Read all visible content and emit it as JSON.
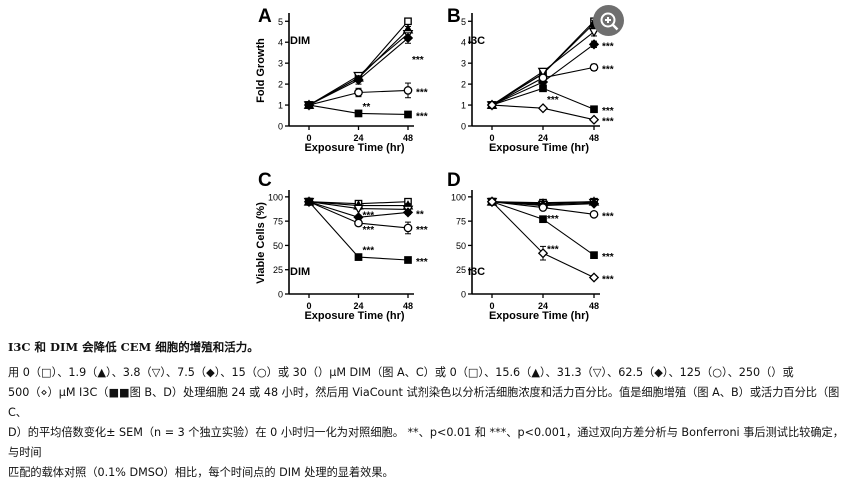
{
  "chart_data": [
    {
      "type": "line",
      "panel": "A",
      "label": "DIM",
      "xlabel": "Exposure Time (hr)",
      "ylabel": "Fold Growth",
      "x": [
        0,
        24,
        48
      ],
      "xticks": [
        "0",
        "24",
        "48"
      ],
      "yticks": [
        "0",
        "1",
        "2",
        "3",
        "4",
        "5"
      ],
      "ylim": [
        0,
        5.3
      ],
      "series": [
        {
          "name": "0 µM",
          "marker": "square-open",
          "values": [
            1,
            2.3,
            5.0
          ],
          "err": [
            0,
            0.15,
            0.12
          ],
          "sig": ""
        },
        {
          "name": "1.9 µM",
          "marker": "triangle-up-filled",
          "values": [
            1,
            2.3,
            4.6
          ],
          "err": [
            0,
            0.15,
            0.15
          ],
          "sig": ""
        },
        {
          "name": "3.8 µM",
          "marker": "triangle-down-open",
          "values": [
            1,
            2.4,
            4.4
          ],
          "err": [
            0,
            0.15,
            0.2
          ],
          "sig": ""
        },
        {
          "name": "7.5 µM",
          "marker": "diamond-filled",
          "values": [
            1,
            2.2,
            4.2
          ],
          "err": [
            0,
            0.2,
            0.25
          ],
          "sig": ""
        },
        {
          "name": "15 µM",
          "marker": "circle-open",
          "values": [
            1,
            1.6,
            1.7
          ],
          "err": [
            0,
            0.2,
            0.35
          ],
          "sig": "***"
        },
        {
          "name": "30 µM",
          "marker": "square-filled",
          "values": [
            1,
            0.6,
            0.55
          ],
          "err": [
            0,
            0.05,
            0.05
          ],
          "sig": "***"
        }
      ],
      "annotations": [
        {
          "text": "***",
          "x": 48,
          "y": 3.2
        },
        {
          "text": "**",
          "x": 24,
          "y": 0.95
        }
      ]
    },
    {
      "type": "line",
      "panel": "B",
      "label": "I3C",
      "xlabel": "Exposure Time (hr)",
      "ylabel": "",
      "x": [
        0,
        24,
        48
      ],
      "xticks": [
        "0",
        "24",
        "48"
      ],
      "yticks": [
        "0",
        "1",
        "2",
        "3",
        "4",
        "5"
      ],
      "ylim": [
        0,
        5.3
      ],
      "series": [
        {
          "name": "0 µM",
          "marker": "square-open",
          "values": [
            1,
            2.5,
            5.0
          ],
          "err": [
            0,
            0.15,
            0.1
          ],
          "sig": ""
        },
        {
          "name": "15.6 µM",
          "marker": "triangle-up-filled",
          "values": [
            1,
            2.5,
            4.9
          ],
          "err": [
            0,
            0.15,
            0.15
          ],
          "sig": ""
        },
        {
          "name": "31.3 µM",
          "marker": "triangle-down-open",
          "values": [
            1,
            2.6,
            4.5
          ],
          "err": [
            0,
            0.15,
            0.2
          ],
          "sig": ""
        },
        {
          "name": "62.5 µM",
          "marker": "diamond-filled",
          "values": [
            1,
            2.1,
            3.9
          ],
          "err": [
            0,
            0.15,
            0.15
          ],
          "sig": "***"
        },
        {
          "name": "125 µM",
          "marker": "circle-open",
          "values": [
            1,
            2.3,
            2.8
          ],
          "err": [
            0,
            0.15,
            0.15
          ],
          "sig": "***"
        },
        {
          "name": "250 µM",
          "marker": "square-filled",
          "values": [
            1,
            1.8,
            0.8
          ],
          "err": [
            0,
            0.15,
            0.05
          ],
          "sig": "***"
        },
        {
          "name": "500 µM",
          "marker": "diamond-open",
          "values": [
            1,
            0.85,
            0.3
          ],
          "err": [
            0,
            0.05,
            0.05
          ],
          "sig": "***"
        }
      ],
      "annotations": [
        {
          "text": "***",
          "x": 24,
          "y": 1.3
        }
      ]
    },
    {
      "type": "line",
      "panel": "C",
      "label": "DIM",
      "xlabel": "Exposure Time (hr)",
      "ylabel": "Viable Cells (%)",
      "x": [
        0,
        24,
        48
      ],
      "xticks": [
        "0",
        "24",
        "48"
      ],
      "yticks": [
        "0",
        "25",
        "50",
        "75",
        "100"
      ],
      "ylim": [
        0,
        105
      ],
      "series": [
        {
          "name": "0 µM",
          "marker": "square-open",
          "values": [
            95,
            93,
            95
          ],
          "err": [
            0,
            1,
            1
          ],
          "sig": ""
        },
        {
          "name": "1.9 µM",
          "marker": "triangle-up-filled",
          "values": [
            95,
            91,
            91
          ],
          "err": [
            0,
            1,
            2
          ],
          "sig": ""
        },
        {
          "name": "3.8 µM",
          "marker": "triangle-down-open",
          "values": [
            95,
            88,
            87
          ],
          "err": [
            0,
            1,
            2
          ],
          "sig": ""
        },
        {
          "name": "7.5 µM",
          "marker": "diamond-filled",
          "values": [
            95,
            79,
            84
          ],
          "err": [
            0,
            2,
            2
          ],
          "sig": "**"
        },
        {
          "name": "15 µM",
          "marker": "circle-open",
          "values": [
            95,
            73,
            68
          ],
          "err": [
            0,
            3,
            6
          ],
          "sig": "***"
        },
        {
          "name": "30 µM",
          "marker": "square-filled",
          "values": [
            95,
            38,
            35
          ],
          "err": [
            0,
            2,
            2
          ],
          "sig": "***"
        }
      ],
      "annotations": [
        {
          "text": "***",
          "x": 24,
          "y": 82
        },
        {
          "text": "***",
          "x": 24,
          "y": 67
        },
        {
          "text": "***",
          "x": 24,
          "y": 46
        }
      ]
    },
    {
      "type": "line",
      "panel": "D",
      "label": "I3C",
      "xlabel": "Exposure Time (hr)",
      "ylabel": "",
      "x": [
        0,
        24,
        48
      ],
      "xticks": [
        "0",
        "24",
        "48"
      ],
      "yticks": [
        "0",
        "25",
        "50",
        "75",
        "100"
      ],
      "ylim": [
        0,
        105
      ],
      "series": [
        {
          "name": "0 µM",
          "marker": "square-open",
          "values": [
            95,
            94,
            95
          ],
          "err": [
            0,
            1,
            1
          ],
          "sig": ""
        },
        {
          "name": "15.6 µM",
          "marker": "triangle-up-filled",
          "values": [
            95,
            93,
            95
          ],
          "err": [
            0,
            1,
            1
          ],
          "sig": ""
        },
        {
          "name": "31.3 µM",
          "marker": "triangle-down-open",
          "values": [
            95,
            92,
            94
          ],
          "err": [
            0,
            1,
            1
          ],
          "sig": ""
        },
        {
          "name": "62.5 µM",
          "marker": "diamond-filled",
          "values": [
            95,
            91,
            93
          ],
          "err": [
            0,
            1,
            1
          ],
          "sig": ""
        },
        {
          "name": "125 µM",
          "marker": "circle-open",
          "values": [
            95,
            89,
            82
          ],
          "err": [
            0,
            2,
            2
          ],
          "sig": "***"
        },
        {
          "name": "250 µM",
          "marker": "square-filled",
          "values": [
            95,
            77,
            40
          ],
          "err": [
            0,
            2,
            2
          ],
          "sig": "***"
        },
        {
          "name": "500 µM",
          "marker": "diamond-open",
          "values": [
            95,
            42,
            17
          ],
          "err": [
            0,
            7,
            2
          ],
          "sig": "***"
        }
      ],
      "annotations": [
        {
          "text": "***",
          "x": 24,
          "y": 78
        },
        {
          "text": "***",
          "x": 24,
          "y": 47
        }
      ]
    }
  ],
  "caption": {
    "title": "I3C 和 DIM 会降低 CEM 细胞的增殖和活力。",
    "line1": "用 0（□）、1.9（▲）、3.8（▽）、7.5（◆）、15（○）或 30（）μM DIM（图 A、C）或 0（□）、15.6（▲）、31.3（▽）、62.5（◆）、125（○）、250（）或",
    "line2": "500（⋄）μM I3C（■■图 B、D）处理细胞 24 或 48 小时，然后用 ViaCount 试剂染色以分析活细胞浓度和活力百分比。值是细胞增殖（图 A、B）或活力百分比（图 C、",
    "line3": "D）的平均倍数变化± SEM（n = 3 个独立实验）在 0 小时归一化为对照细胞。 **、p<0.01 和 ***、p<0.001，通过双向方差分析与 Bonferroni 事后测试比较确定，与时间",
    "line4": "匹配的载体对照（0.1% DMSO）相比，每个时间点的 DIM 处理的显着效果。"
  },
  "zoom_button": {
    "icon": "zoom-in-icon",
    "glyph": "⊕"
  }
}
